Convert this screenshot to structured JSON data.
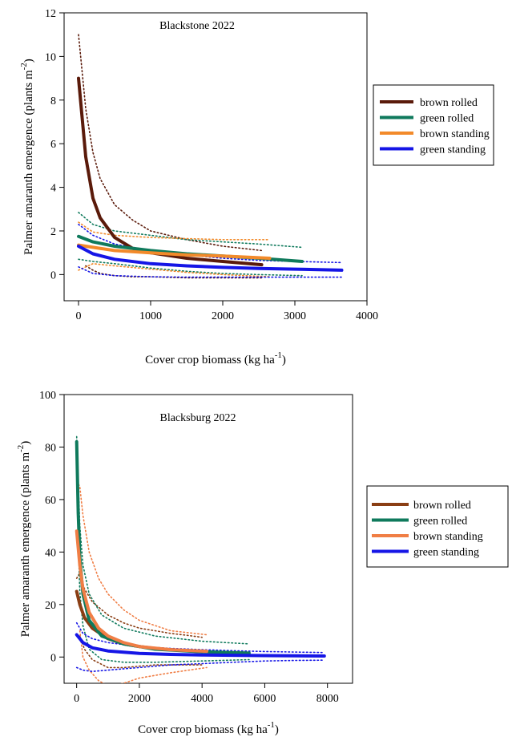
{
  "chart_data": [
    {
      "type": "line",
      "title": "Blackstone 2022",
      "xlabel_main": "Cover crop biomass (kg ha",
      "xlabel_sup": "-1",
      "xlabel_end": ")",
      "ylabel_main": "Palmer amaranth emergence (plants m",
      "ylabel_sup": "-2",
      "ylabel_end": ")",
      "xlim": [
        -200,
        4000
      ],
      "ylim": [
        -1.2,
        12
      ],
      "xticks": [
        0,
        1000,
        2000,
        3000,
        4000
      ],
      "xtick_labels": [
        "0",
        "1000",
        "2000",
        "3000",
        "4000"
      ],
      "yticks": [
        0,
        2,
        4,
        6,
        8,
        10,
        12
      ],
      "ytick_labels": [
        "0",
        "2",
        "4",
        "6",
        "8",
        "10",
        "12"
      ],
      "legend_position": "right",
      "series": [
        {
          "name": "brown rolled",
          "color": "#5a1a0a",
          "x": [
            0,
            100,
            200,
            300,
            500,
            750,
            1000,
            1500,
            2000,
            2540
          ],
          "y": [
            9.0,
            5.4,
            3.5,
            2.6,
            1.7,
            1.2,
            1.0,
            0.75,
            0.6,
            0.45
          ],
          "lower": [
            null,
            0.4,
            0.2,
            0.05,
            -0.05,
            -0.1,
            -0.1,
            -0.15,
            -0.15,
            -0.15
          ],
          "upper": [
            11.0,
            7.6,
            5.6,
            4.4,
            3.2,
            2.5,
            2.0,
            1.6,
            1.3,
            1.1
          ]
        },
        {
          "name": "green rolled",
          "color": "#0f7a5c",
          "x": [
            0,
            200,
            500,
            1000,
            1500,
            2000,
            2500,
            3100
          ],
          "y": [
            1.75,
            1.5,
            1.3,
            1.1,
            0.95,
            0.85,
            0.75,
            0.6
          ],
          "lower": [
            0.7,
            0.6,
            0.5,
            0.3,
            0.15,
            0.05,
            0.0,
            -0.05
          ],
          "upper": [
            2.85,
            2.3,
            2.0,
            1.8,
            1.6,
            1.5,
            1.4,
            1.25
          ]
        },
        {
          "name": "brown standing",
          "color": "#f28a2a",
          "x": [
            0,
            200,
            500,
            1000,
            1500,
            2000,
            2650
          ],
          "y": [
            1.35,
            1.25,
            1.1,
            1.0,
            0.9,
            0.85,
            0.75
          ],
          "lower": [
            0.2,
            0.5,
            0.4,
            0.25,
            0.1,
            0.0,
            -0.1
          ],
          "upper": [
            2.4,
            1.95,
            1.8,
            1.7,
            1.65,
            1.6,
            1.6
          ]
        },
        {
          "name": "green standing",
          "color": "#1515e6",
          "x": [
            0,
            200,
            500,
            1000,
            1500,
            2000,
            2500,
            3000,
            3650
          ],
          "y": [
            1.3,
            0.95,
            0.7,
            0.5,
            0.4,
            0.33,
            0.28,
            0.25,
            0.2
          ],
          "lower": [
            0.35,
            0.05,
            -0.05,
            -0.1,
            -0.12,
            -0.12,
            -0.12,
            -0.12,
            -0.12
          ],
          "upper": [
            2.3,
            1.8,
            1.4,
            1.1,
            0.9,
            0.75,
            0.65,
            0.6,
            0.55
          ]
        }
      ]
    },
    {
      "type": "line",
      "title": "Blacksburg 2022",
      "xlabel_main": "Cover crop biomass (kg ha",
      "xlabel_sup": "-1",
      "xlabel_end": ")",
      "ylabel_main": "Palmer amaranth emergence (plants m",
      "ylabel_sup": "-2",
      "ylabel_end": ")",
      "xlim": [
        -400,
        8800
      ],
      "ylim": [
        -10,
        100
      ],
      "xticks": [
        0,
        2000,
        4000,
        6000,
        8000
      ],
      "xtick_labels": [
        "0",
        "2000",
        "4000",
        "6000",
        "8000"
      ],
      "yticks": [
        0,
        20,
        40,
        60,
        80,
        100
      ],
      "ytick_labels": [
        "0",
        "20",
        "40",
        "60",
        "80",
        "100"
      ],
      "legend_position": "right",
      "series": [
        {
          "name": "brown rolled",
          "color": "#8a3e14",
          "x": [
            0,
            100,
            250,
            500,
            1000,
            1500,
            2000,
            2500,
            3000,
            3500,
            4000
          ],
          "y": [
            25,
            20,
            15,
            11,
            7,
            5,
            4,
            3.3,
            2.8,
            2.4,
            2.0
          ],
          "lower": [
            null,
            8,
            3,
            -1,
            -4,
            -4,
            -3.5,
            -3,
            -3,
            -3,
            -3
          ],
          "upper": [
            30,
            32,
            26,
            21,
            16,
            13,
            11,
            10,
            9,
            8.3,
            7.5
          ]
        },
        {
          "name": "green rolled",
          "color": "#0f7a5c",
          "x": [
            0,
            50,
            100,
            200,
            400,
            800,
            1500,
            2500,
            4000,
            5500
          ],
          "y": [
            82,
            55,
            38,
            24,
            14,
            8,
            5,
            3,
            2,
            1.5
          ],
          "lower": [
            null,
            45,
            25,
            12,
            3,
            -1,
            -2,
            -2,
            -1.5,
            -1
          ],
          "upper": [
            84,
            67,
            50,
            35,
            24,
            16,
            11,
            8,
            6,
            5
          ]
        },
        {
          "name": "brown standing",
          "color": "#f07e45",
          "x": [
            0,
            100,
            200,
            400,
            700,
            1000,
            1500,
            2000,
            3000,
            4150
          ],
          "y": [
            48,
            35,
            26,
            17,
            11,
            8,
            5.5,
            4,
            2.8,
            2.2
          ],
          "lower": [
            null,
            10,
            0,
            -5,
            -9,
            -11,
            -10,
            -8,
            -6,
            -4
          ],
          "upper": [
            67,
            65,
            54,
            40,
            30,
            24,
            18,
            14,
            10,
            8.5
          ]
        },
        {
          "name": "green standing",
          "color": "#1515e6",
          "x": [
            0,
            200,
            500,
            1000,
            2000,
            3000,
            4000,
            5000,
            6000,
            7000,
            7900
          ],
          "y": [
            8.5,
            5.5,
            3.5,
            2.3,
            1.4,
            1.0,
            0.8,
            0.65,
            0.55,
            0.45,
            0.4
          ],
          "lower": [
            -4,
            -5,
            -5.5,
            -5,
            -4,
            -3,
            -2.5,
            -2,
            -1.5,
            -1.3,
            -1.2
          ],
          "upper": [
            13,
            9,
            7,
            5.5,
            4,
            3.3,
            2.8,
            2.4,
            2.1,
            1.9,
            1.7
          ]
        }
      ]
    }
  ]
}
